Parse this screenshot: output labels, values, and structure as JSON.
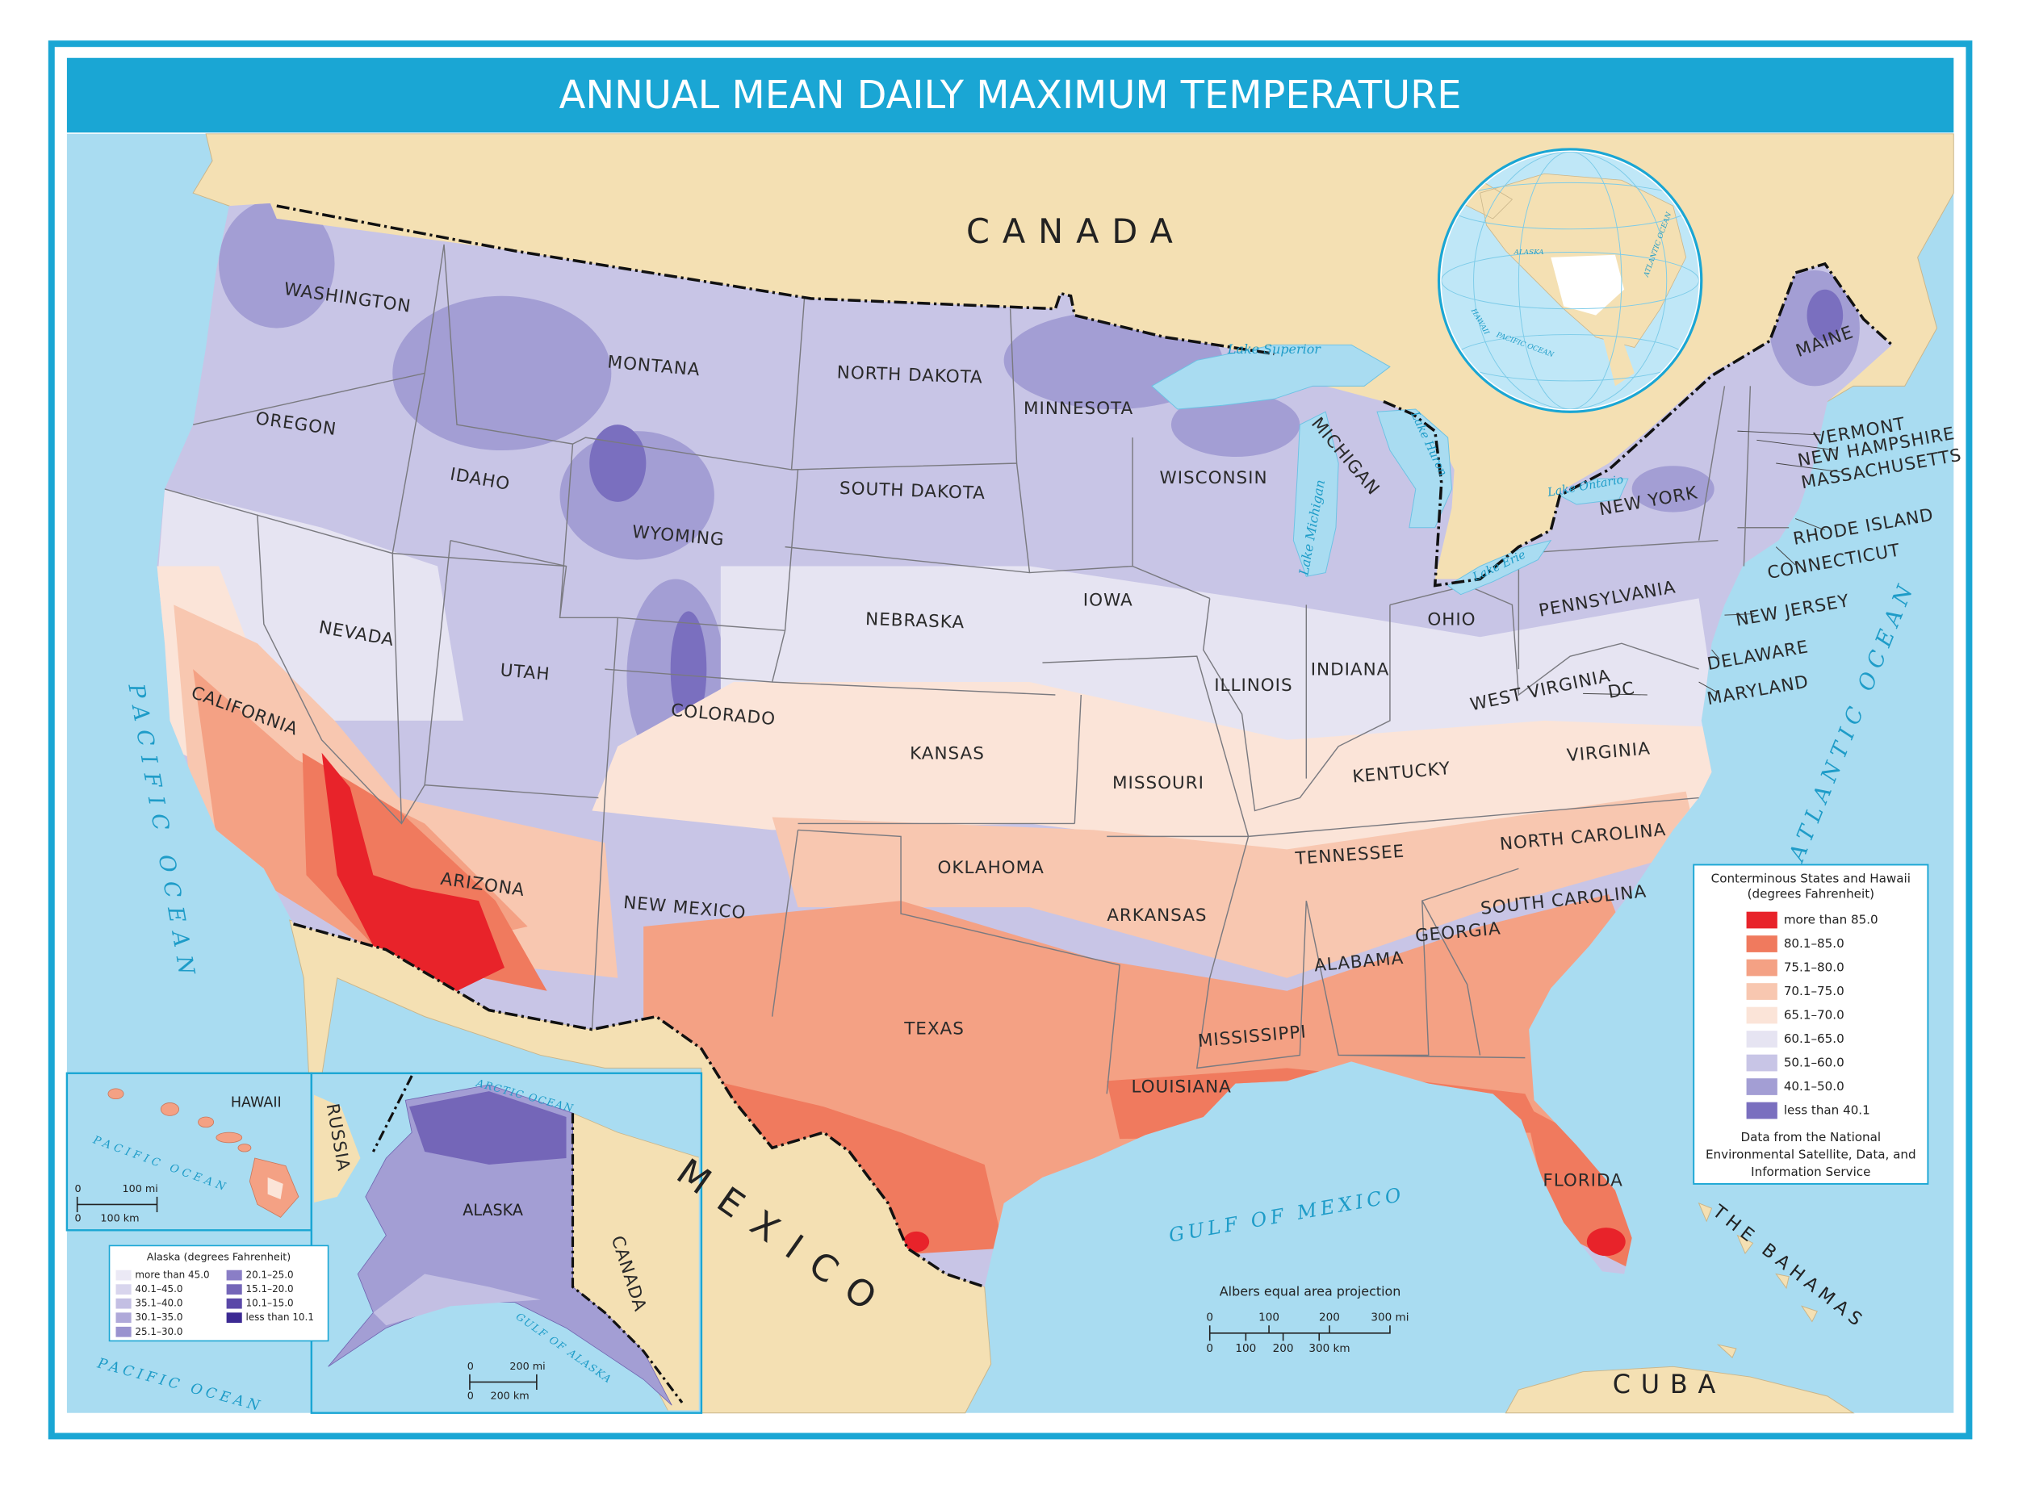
{
  "title": "ANNUAL MEAN DAILY MAXIMUM TEMPERATURE",
  "labels": {
    "countries": [
      "CANADA",
      "MEXICO",
      "CUBA",
      "THE BAHAMAS"
    ],
    "water": [
      "PACIFIC OCEAN",
      "ATLANTIC OCEAN",
      "GULF OF MEXICO",
      "Lake Superior",
      "Lake Michigan",
      "Lake Huron",
      "Lake Erie",
      "Lake Ontario"
    ],
    "states": [
      "WASHINGTON",
      "OREGON",
      "CALIFORNIA",
      "NEVADA",
      "IDAHO",
      "MONTANA",
      "WYOMING",
      "UTAH",
      "COLORADO",
      "ARIZONA",
      "NEW MEXICO",
      "NORTH DAKOTA",
      "SOUTH DAKOTA",
      "NEBRASKA",
      "KANSAS",
      "OKLAHOMA",
      "TEXAS",
      "MINNESOTA",
      "IOWA",
      "MISSOURI",
      "ARKANSAS",
      "LOUISIANA",
      "WISCONSIN",
      "ILLINOIS",
      "MICHIGAN",
      "INDIANA",
      "OHIO",
      "KENTUCKY",
      "TENNESSEE",
      "MISSISSIPPI",
      "ALABAMA",
      "GEORGIA",
      "FLORIDA",
      "SOUTH CAROLINA",
      "NORTH CAROLINA",
      "VIRGINIA",
      "WEST VIRGINIA",
      "PENNSYLVANIA",
      "NEW YORK",
      "MAINE"
    ],
    "small_states": [
      "VERMONT",
      "NEW HAMPSHIRE",
      "MASSACHUSETTS",
      "RHODE ISLAND",
      "CONNECTICUT",
      "NEW JERSEY",
      "DELAWARE",
      "MARYLAND",
      "DC"
    ]
  },
  "globe": [
    "ALASKA",
    "HAWAII",
    "PACIFIC OCEAN",
    "ATLANTIC OCEAN"
  ],
  "legend": {
    "title": [
      "Conterminous States and Hawaii",
      "(degrees Fahrenheit)"
    ],
    "items": [
      {
        "label": "more than 85.0",
        "color": "#e8232a"
      },
      {
        "label": "80.1–85.0",
        "color": "#f07a5e"
      },
      {
        "label": "75.1–80.0",
        "color": "#f4a184"
      },
      {
        "label": "70.1–75.0",
        "color": "#f8c7b0"
      },
      {
        "label": "65.1–70.0",
        "color": "#fbe4d8"
      },
      {
        "label": "60.1–65.0",
        "color": "#e6e4f2"
      },
      {
        "label": "50.1–60.0",
        "color": "#c8c5e6"
      },
      {
        "label": "40.1–50.0",
        "color": "#a39ed4"
      },
      {
        "label": "less than 40.1",
        "color": "#7a6fbf"
      }
    ],
    "source": [
      "Data from the National",
      "Environmental Satellite, Data, and",
      "Information Service"
    ]
  },
  "hawaii_inset": {
    "title": "HAWAII",
    "water": "PACIFIC OCEAN",
    "scale": [
      "0",
      "100 mi",
      "0",
      "100 km"
    ]
  },
  "alaska_inset": {
    "title": "ALASKA",
    "labels": [
      "CANADA",
      "ARCTIC OCEAN",
      "GULF OF ALASKA",
      "PACIFIC OCEAN",
      "RUSSIA"
    ],
    "scale": [
      "0",
      "200 mi",
      "0",
      "200 km"
    ],
    "legend": {
      "title": "Alaska (degrees Fahrenheit)",
      "items": [
        {
          "label": "more than 45.0",
          "color": "#ebe9f5"
        },
        {
          "label": "40.1–45.0",
          "color": "#d8d5ed"
        },
        {
          "label": "35.1–40.0",
          "color": "#c3bfe3"
        },
        {
          "label": "30.1–35.0",
          "color": "#afa9d9"
        },
        {
          "label": "25.1–30.0",
          "color": "#9a93cf"
        },
        {
          "label": "20.1–25.0",
          "color": "#8a7ec6"
        },
        {
          "label": "15.1–20.0",
          "color": "#7466b8"
        },
        {
          "label": "10.1–15.0",
          "color": "#5a48a8"
        },
        {
          "label": "less than 10.1",
          "color": "#3c2a93"
        }
      ]
    }
  },
  "projection": "Albers equal area projection",
  "scale": {
    "miles": [
      "0",
      "100",
      "200",
      "300 mi"
    ],
    "kilometers": [
      "0",
      "100",
      "200",
      "300 km"
    ]
  }
}
